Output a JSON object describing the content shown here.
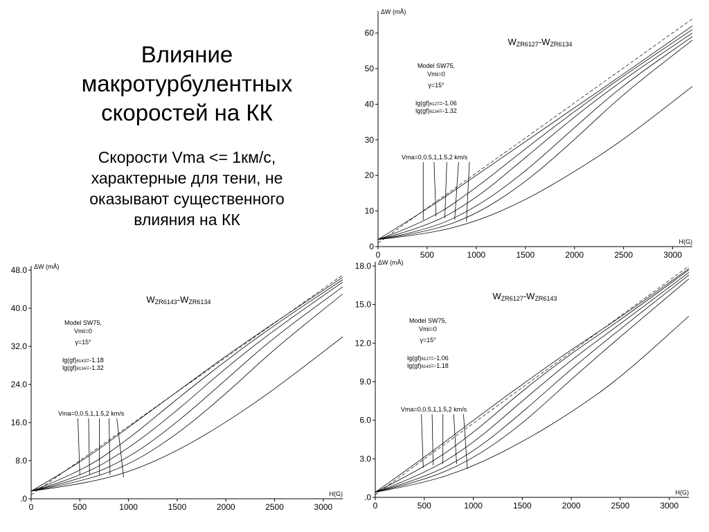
{
  "slide": {
    "title_lines": [
      "Влияние",
      "макротурбулентных",
      "скоростей на КК"
    ],
    "subtitle_lines": [
      "Скорости Vma <= 1км/с,",
      "характерные для тени, не",
      "оказывают существенного",
      "влияния на КК"
    ]
  },
  "chart_data": [
    {
      "type": "line",
      "title_parts": [
        "W",
        "ZR6127",
        "-W",
        "ZR6134"
      ],
      "ylabel": "ΔW (mÅ)",
      "xlabel": "H(G)",
      "xlim": [
        0,
        3200
      ],
      "ylim": [
        0,
        65
      ],
      "x_ticks": [
        0,
        500,
        1000,
        1500,
        2000,
        2500,
        3000
      ],
      "x_tick_labels": [
        "0",
        "500",
        "1000",
        "1500",
        "2000",
        "2500",
        "3000"
      ],
      "y_ticks": [
        0,
        10,
        20,
        30,
        40,
        50,
        60
      ],
      "y_tick_labels": [
        "0",
        "10",
        "20",
        "30",
        "40",
        "50",
        "60"
      ],
      "annotation": {
        "model": "Model SW75,",
        "vmi": "Vmi=0",
        "gamma": "γ=15°",
        "gf1_pre": "lg(gf)",
        "gf1_sub": "6127",
        "gf1_post": "=-1.06",
        "gf2_pre": "lg(gf)",
        "gf2_sub": "6134",
        "gf2_post": "=-1.32"
      },
      "vma_label": "Vma=0,0.5,1,1.5,2 km/s",
      "series": [
        {
          "values": [
            [
              0,
              2.0
            ],
            [
              500,
              10.5
            ],
            [
              1000,
              20
            ],
            [
              1500,
              29.5
            ],
            [
              2000,
              39
            ],
            [
              2500,
              48.5
            ],
            [
              3200,
              62
            ]
          ]
        },
        {
          "values": [
            [
              0,
              2.0
            ],
            [
              500,
              7
            ],
            [
              1000,
              16.5
            ],
            [
              1500,
              27.5
            ],
            [
              2000,
              38
            ],
            [
              2500,
              48
            ],
            [
              3200,
              61
            ]
          ]
        },
        {
          "values": [
            [
              0,
              2.0
            ],
            [
              500,
              5.5
            ],
            [
              1000,
              13.5
            ],
            [
              1500,
              25
            ],
            [
              2000,
              36.5
            ],
            [
              2500,
              47
            ],
            [
              3200,
              60
            ]
          ]
        },
        {
          "values": [
            [
              0,
              2.0
            ],
            [
              500,
              4.5
            ],
            [
              1000,
              11
            ],
            [
              1500,
              21
            ],
            [
              2000,
              33.5
            ],
            [
              2500,
              45.5
            ],
            [
              3200,
              59
            ]
          ]
        },
        {
          "values": [
            [
              0,
              2.0
            ],
            [
              500,
              4
            ],
            [
              1000,
              9
            ],
            [
              1500,
              18
            ],
            [
              2000,
              30
            ],
            [
              2500,
              43
            ],
            [
              3200,
              58
            ]
          ]
        },
        {
          "values": [
            [
              0,
              2.0
            ],
            [
              500,
              3.5
            ],
            [
              1000,
              7
            ],
            [
              1500,
              13
            ],
            [
              2000,
              21
            ],
            [
              2500,
              30
            ],
            [
              3200,
              45
            ]
          ]
        }
      ],
      "dashed": {
        "values": [
          [
            0,
            1.0
          ],
          [
            3200,
            64
          ]
        ]
      },
      "pointers": [
        {
          "label_x": 460,
          "data": [
            460,
            7.5
          ]
        },
        {
          "label_x": 570,
          "data": [
            590,
            8.5
          ]
        },
        {
          "label_x": 700,
          "data": [
            680,
            8
          ]
        },
        {
          "label_x": 820,
          "data": [
            780,
            7.5
          ]
        },
        {
          "label_x": 930,
          "data": [
            900,
            7
          ]
        }
      ]
    },
    {
      "type": "line",
      "title_parts": [
        "W",
        "ZR6143",
        "-W",
        "ZR6134"
      ],
      "ylabel": "ΔW (mÅ)",
      "xlabel": "H(G)",
      "xlim": [
        0,
        3200
      ],
      "ylim": [
        0,
        48
      ],
      "x_ticks": [
        0,
        500,
        1000,
        1500,
        2000,
        2500,
        3000
      ],
      "x_tick_labels": [
        "0",
        "500",
        "1000",
        "1500",
        "2000",
        "2500",
        "3000"
      ],
      "y_ticks": [
        0,
        8,
        16,
        24,
        32,
        40,
        48
      ],
      "y_tick_labels": [
        ".0",
        "8.0",
        "16.0",
        "24.0",
        "32.0",
        "40.0",
        "48.0"
      ],
      "annotation": {
        "model": "Model SW75,",
        "vmi": "Vmi=0",
        "gamma": "γ=15°",
        "gf1_pre": "lg(gf)",
        "gf1_sub": "6143",
        "gf1_post": "=-1.18",
        "gf2_pre": "lg(gf)",
        "gf2_sub": "6134",
        "gf2_post": "=-1.32"
      },
      "vma_label": "Vma=0,0.5,1,1.5,2 km/s",
      "series": [
        {
          "values": [
            [
              0,
              1.6
            ],
            [
              500,
              7.5
            ],
            [
              1000,
              15
            ],
            [
              1500,
              22.5
            ],
            [
              2000,
              30
            ],
            [
              2500,
              37
            ],
            [
              3200,
              46.5
            ]
          ]
        },
        {
          "values": [
            [
              0,
              1.6
            ],
            [
              500,
              5.5
            ],
            [
              1000,
              12.5
            ],
            [
              1500,
              21
            ],
            [
              2000,
              29
            ],
            [
              2500,
              36.5
            ],
            [
              3200,
              46
            ]
          ]
        },
        {
          "values": [
            [
              0,
              1.6
            ],
            [
              500,
              4.5
            ],
            [
              1000,
              10.5
            ],
            [
              1500,
              18.5
            ],
            [
              2000,
              27.5
            ],
            [
              2500,
              35.5
            ],
            [
              3200,
              45.5
            ]
          ]
        },
        {
          "values": [
            [
              0,
              1.6
            ],
            [
              500,
              4
            ],
            [
              1000,
              8.5
            ],
            [
              1500,
              16
            ],
            [
              2000,
              25
            ],
            [
              2500,
              34
            ],
            [
              3200,
              44.5
            ]
          ]
        },
        {
          "values": [
            [
              0,
              1.6
            ],
            [
              500,
              3.5
            ],
            [
              1000,
              7
            ],
            [
              1500,
              13.5
            ],
            [
              2000,
              22
            ],
            [
              2500,
              31.5
            ],
            [
              3200,
              43
            ]
          ]
        },
        {
          "values": [
            [
              0,
              1.6
            ],
            [
              500,
              3
            ],
            [
              1000,
              5.5
            ],
            [
              1500,
              10
            ],
            [
              2000,
              16
            ],
            [
              2500,
              23
            ],
            [
              3200,
              34
            ]
          ]
        }
      ],
      "dashed": {
        "values": [
          [
            0,
            0.8
          ],
          [
            3200,
            47
          ]
        ]
      },
      "pointers": [
        {
          "label_x": 480,
          "data": [
            500,
            5
          ]
        },
        {
          "label_x": 590,
          "data": [
            600,
            5
          ]
        },
        {
          "label_x": 700,
          "data": [
            700,
            5
          ]
        },
        {
          "label_x": 800,
          "data": [
            810,
            5
          ]
        },
        {
          "label_x": 880,
          "data": [
            950,
            4.5
          ]
        }
      ]
    },
    {
      "type": "line",
      "title_parts": [
        "W",
        "ZR6127",
        "-W",
        "ZR6143"
      ],
      "ylabel": "ΔW (mÅ)",
      "xlabel": "H(G)",
      "xlim": [
        0,
        3200
      ],
      "ylim": [
        0,
        18
      ],
      "x_ticks": [
        0,
        500,
        1000,
        1500,
        2000,
        2500,
        3000
      ],
      "x_tick_labels": [
        "0",
        "500",
        "1000",
        "1500",
        "2000",
        "2500",
        "3000"
      ],
      "y_ticks": [
        0,
        3,
        6,
        9,
        12,
        15,
        18
      ],
      "y_tick_labels": [
        ".0",
        "3.0",
        "6.0",
        "9.0",
        "12.0",
        "15.0",
        "18.0"
      ],
      "annotation": {
        "model": "Model SW75,",
        "vmi": "Vmi=0",
        "gamma": "γ=15°",
        "gf1_pre": "lg(gf)",
        "gf1_sub": "6127",
        "gf1_post": "=-1.06",
        "gf2_pre": "lg(gf)",
        "gf2_sub": "6143",
        "gf2_post": "=-1.18"
      },
      "vma_label": "Vma=0,0.5,1,1.5,2 km/s",
      "series": [
        {
          "values": [
            [
              0,
              0.4
            ],
            [
              500,
              3.1
            ],
            [
              1000,
              6
            ],
            [
              1500,
              8.8
            ],
            [
              2000,
              11.5
            ],
            [
              2500,
              14
            ],
            [
              3200,
              17.8
            ]
          ]
        },
        {
          "values": [
            [
              0,
              0.4
            ],
            [
              500,
              2.3
            ],
            [
              1000,
              5
            ],
            [
              1500,
              8.3
            ],
            [
              2000,
              11.2
            ],
            [
              2500,
              13.8
            ],
            [
              3200,
              17.7
            ]
          ]
        },
        {
          "values": [
            [
              0,
              0.4
            ],
            [
              500,
              1.8
            ],
            [
              1000,
              4.2
            ],
            [
              1500,
              7.5
            ],
            [
              2000,
              10.7
            ],
            [
              2500,
              13.5
            ],
            [
              3200,
              17.5
            ]
          ]
        },
        {
          "values": [
            [
              0,
              0.4
            ],
            [
              500,
              1.5
            ],
            [
              1000,
              3.5
            ],
            [
              1500,
              6.6
            ],
            [
              2000,
              10
            ],
            [
              2500,
              13.1
            ],
            [
              3200,
              17.3
            ]
          ]
        },
        {
          "values": [
            [
              0,
              0.4
            ],
            [
              500,
              1.3
            ],
            [
              1000,
              3
            ],
            [
              1500,
              5.7
            ],
            [
              2000,
              9.2
            ],
            [
              2500,
              12.5
            ],
            [
              3200,
              17
            ]
          ]
        },
        {
          "values": [
            [
              0,
              0.4
            ],
            [
              500,
              1.1
            ],
            [
              1000,
              2.4
            ],
            [
              1500,
              4.3
            ],
            [
              2000,
              6.6
            ],
            [
              2500,
              9.3
            ],
            [
              3200,
              14.1
            ]
          ]
        }
      ],
      "dashed": {
        "values": [
          [
            0,
            0.2
          ],
          [
            3200,
            18
          ]
        ]
      },
      "pointers": [
        {
          "label_x": 470,
          "data": [
            490,
            2.3
          ]
        },
        {
          "label_x": 580,
          "data": [
            590,
            2.5
          ]
        },
        {
          "label_x": 690,
          "data": [
            690,
            2.6
          ]
        },
        {
          "label_x": 800,
          "data": [
            830,
            2.6
          ]
        },
        {
          "label_x": 900,
          "data": [
            940,
            2.2
          ]
        }
      ]
    }
  ]
}
